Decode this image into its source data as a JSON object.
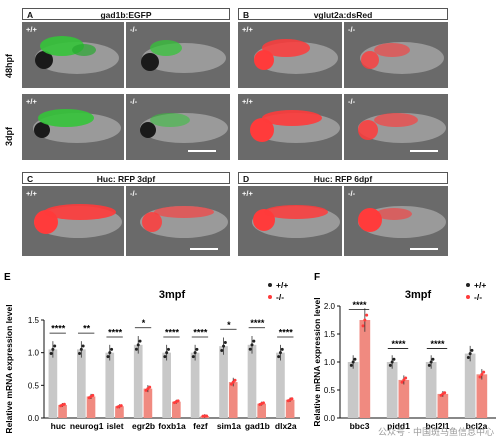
{
  "panels": {
    "A": {
      "letter": "A",
      "caption": "gad1b:EGFP"
    },
    "B": {
      "letter": "B",
      "caption": "vglut2a:dsRed"
    },
    "C": {
      "letter": "C",
      "caption": "Huc: RFP  3dpf"
    },
    "D": {
      "letter": "D",
      "caption": "Huc: RFP  6dpf"
    }
  },
  "row_labels": {
    "r1": "48hpf",
    "r2": "3dpf"
  },
  "genotypes": {
    "wt": "+/+",
    "ko": "-/-"
  },
  "colors": {
    "green": "#35c43a",
    "red": "#ff3b3b",
    "bar_grey": "#c8c8c8",
    "bar_salmon": "#f08a80"
  },
  "watermark": "公众号 · 中国斑马鱼信息中心",
  "chart_data": [
    {
      "type": "bar",
      "panel": "E",
      "title": "3mpf",
      "ylabel": "Relative mRNA expression level",
      "ylim": [
        0,
        1.5
      ],
      "yticks": [
        "0.0",
        "0.5",
        "1.0",
        "1.5"
      ],
      "categories": [
        "huc",
        "neurog1",
        "islet",
        "egr2b",
        "foxb1a",
        "fezf",
        "sim1a",
        "gad1b",
        "dlx2a"
      ],
      "significance": [
        "****",
        "**",
        "****",
        "*",
        "****",
        "****",
        "*",
        "****",
        "****"
      ],
      "series": [
        {
          "name": "+/+",
          "values": [
            1.05,
            1.05,
            1.0,
            1.12,
            1.0,
            1.0,
            1.1,
            1.12,
            1.0
          ]
        },
        {
          "name": "-/-",
          "values": [
            0.2,
            0.33,
            0.18,
            0.45,
            0.25,
            0.03,
            0.55,
            0.22,
            0.28
          ]
        }
      ]
    },
    {
      "type": "bar",
      "panel": "F",
      "title": "3mpf",
      "ylabel": "Relative mRNA expression level",
      "ylim": [
        0,
        2.0
      ],
      "yticks": [
        "0.0",
        "0.5",
        "1.0",
        "1.5",
        "2.0"
      ],
      "categories": [
        "bbc3",
        "pidd1",
        "bcl2l1",
        "bcl2a"
      ],
      "significance": [
        "****",
        "****",
        "****",
        ""
      ],
      "series": [
        {
          "name": "+/+",
          "values": [
            1.0,
            1.0,
            1.0,
            1.15
          ]
        },
        {
          "name": "-/-",
          "values": [
            1.75,
            0.68,
            0.43,
            0.78
          ]
        }
      ]
    }
  ]
}
